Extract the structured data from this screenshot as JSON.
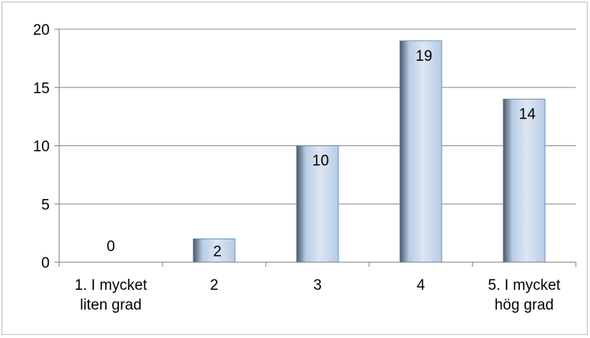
{
  "chart_data": {
    "type": "bar",
    "title": "",
    "xlabel": "",
    "ylabel": "",
    "categories": [
      [
        "1. I mycket",
        "liten grad"
      ],
      [
        "2"
      ],
      [
        "3"
      ],
      [
        "4"
      ],
      [
        "5. I mycket",
        "hög grad"
      ]
    ],
    "values": [
      0,
      2,
      10,
      19,
      14
    ],
    "data_labels": [
      "0",
      "2",
      "10",
      "19",
      "14"
    ],
    "y_ticks": [
      "0",
      "5",
      "10",
      "15",
      "20"
    ],
    "ylim": [
      0,
      20
    ],
    "y_step": 5,
    "grid": true,
    "legend": "none",
    "colors": {
      "bar_light": "#dce6f4",
      "bar_mid": "#b8cce4",
      "bar_shadow": "#4a5564",
      "bar_edge": "#4f81bd",
      "grid": "#8c8c8c",
      "axis": "#7f7f7f"
    }
  }
}
